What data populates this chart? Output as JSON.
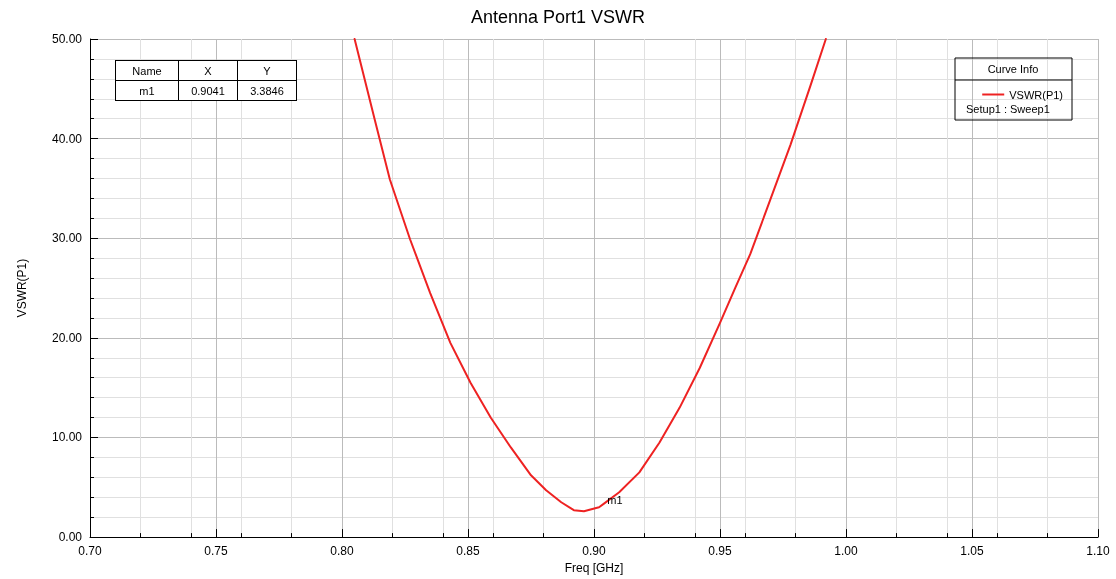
{
  "chart_data": {
    "type": "line",
    "title": "Antenna Port1 VSWR",
    "xlabel": "Freq [GHz]",
    "ylabel": "VSWR(P1)",
    "legend_title": "Curve Info",
    "legend": "top right",
    "grid": true,
    "marker": "none",
    "line_style": "solid",
    "xlim": [
      0.7,
      1.1
    ],
    "ylim": [
      0,
      50
    ],
    "xticks": [
      {
        "value": 0.7,
        "label": "0.70"
      },
      {
        "value": 0.75,
        "label": "0.75"
      },
      {
        "value": 0.8,
        "label": "0.80"
      },
      {
        "value": 0.85,
        "label": "0.85"
      },
      {
        "value": 0.9,
        "label": "0.90"
      },
      {
        "value": 0.95,
        "label": "0.95"
      },
      {
        "value": 1.0,
        "label": "1.00"
      },
      {
        "value": 1.05,
        "label": "1.05"
      },
      {
        "value": 1.1,
        "label": "1.10"
      }
    ],
    "yticks": [
      {
        "value": 0,
        "label": "0.00"
      },
      {
        "value": 10,
        "label": "10.00"
      },
      {
        "value": 20,
        "label": "20.00"
      },
      {
        "value": 30,
        "label": "30.00"
      },
      {
        "value": 40,
        "label": "40.00"
      },
      {
        "value": 50,
        "label": "50.00"
      }
    ],
    "x": [
      0.805,
      0.813,
      0.819,
      0.827,
      0.835,
      0.843,
      0.851,
      0.859,
      0.867,
      0.875,
      0.881,
      0.887,
      0.892,
      0.896,
      0.902,
      0.9041,
      0.91,
      0.918,
      0.926,
      0.934,
      0.942,
      0.95,
      0.956,
      0.962,
      0.97,
      0.978,
      0.986,
      0.992
    ],
    "series": [
      {
        "name": "VSWR(P1)",
        "color": "#ee2222",
        "values": [
          50,
          41.9,
          35.9,
          29.9,
          24.5,
          19.5,
          15.5,
          12.0,
          9.0,
          6.2,
          4.7,
          3.5,
          2.7,
          2.6,
          3.0,
          3.3846,
          4.5,
          6.5,
          9.5,
          13.0,
          17.0,
          21.5,
          25.0,
          28.4,
          33.9,
          39.4,
          45.4,
          50
        ]
      }
    ],
    "annotations": [
      {
        "text": "m1",
        "x": 0.9041,
        "y": 3.3846
      },
      "Name",
      "X",
      "Y",
      "m1",
      "0.9041",
      "3.3846",
      "Setup1 : Sweep1"
    ]
  }
}
